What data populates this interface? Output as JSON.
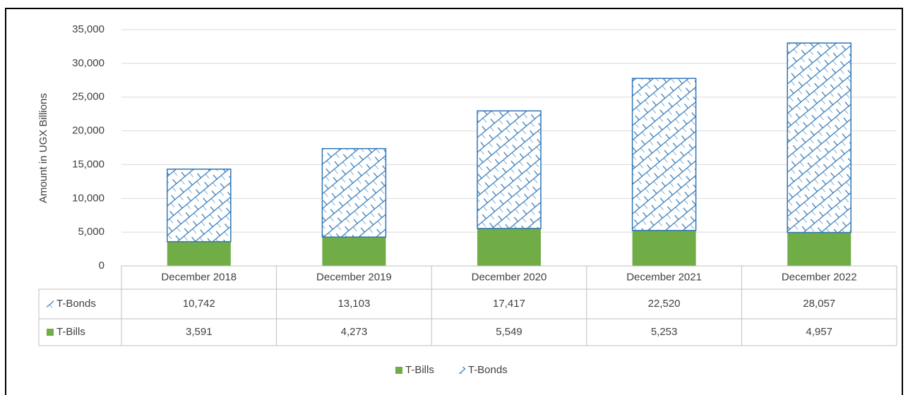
{
  "chart_data": {
    "type": "stacked_bar",
    "y_label": "Amount in UGX Billions",
    "categories": [
      "December 2018",
      "December 2019",
      "December 2020",
      "December 2021",
      "December 2022"
    ],
    "series": [
      {
        "name": "T-Bills",
        "color": "#70ad47",
        "pattern": "solid",
        "values": [
          3591,
          4273,
          5549,
          5253,
          4957
        ],
        "value_labels": [
          "3,591",
          "4,273",
          "5,549",
          "5,253",
          "4,957"
        ]
      },
      {
        "name": "T-Bonds",
        "color": "#2e75b6",
        "pattern": "hatch",
        "values": [
          10742,
          13103,
          17417,
          22520,
          28057
        ],
        "value_labels": [
          "10,742",
          "13,103",
          "17,417",
          "22,520",
          "28,057"
        ]
      }
    ],
    "ylim": [
      0,
      35000
    ],
    "yticks": [
      0,
      {
        "value": 5000,
        "label": "5,000"
      },
      {
        "value": 10000,
        "label": "10,000"
      },
      {
        "value": 15000,
        "label": "15,000"
      },
      {
        "value": 20000,
        "label": "20,000"
      },
      {
        "value": 25000,
        "label": "25,000"
      },
      {
        "value": 30000,
        "label": "30,000"
      },
      {
        "value": 35000,
        "label": "35,000"
      }
    ],
    "grid": true,
    "data_table": true,
    "legend": "bottom"
  }
}
